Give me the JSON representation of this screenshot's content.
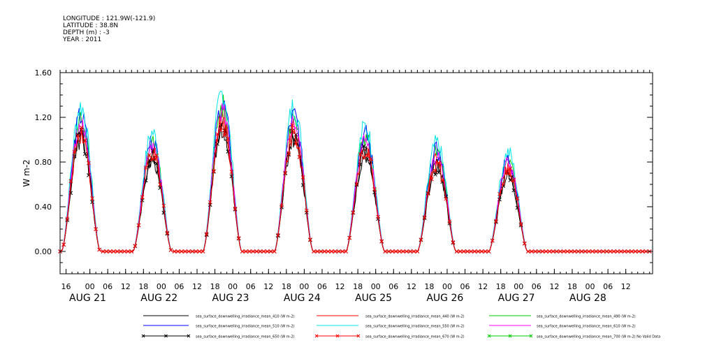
{
  "header": {
    "longitude": "LONGITUDE : 121.9W(-121.9)",
    "latitude": "LATITUDE : 38.8N",
    "depth": "DEPTH (m) : -3",
    "year": "YEAR : 2011"
  },
  "chart_data": {
    "type": "line",
    "ylabel": "W m-2",
    "ylim": [
      -0.2,
      1.6
    ],
    "yticks": [
      "0.00",
      "0.40",
      "0.80",
      "1.20",
      "1.60"
    ],
    "ytick_values": [
      0.0,
      0.4,
      0.8,
      1.2,
      1.6
    ],
    "x_hour_ticks": [
      "16",
      "00",
      "06",
      "12",
      "18",
      "00",
      "06",
      "12",
      "18",
      "00",
      "06",
      "12",
      "18",
      "00",
      "06",
      "12",
      "18",
      "00",
      "06",
      "12",
      "18",
      "00",
      "06",
      "12",
      "18",
      "00",
      "06",
      "12",
      "18",
      "00",
      "06",
      "12"
    ],
    "x_hour_tick_times": [
      -8,
      0,
      6,
      12,
      18,
      24,
      30,
      36,
      42,
      48,
      54,
      60,
      66,
      72,
      78,
      84,
      90,
      96,
      102,
      108,
      114,
      120,
      126,
      132,
      138,
      144,
      150,
      156,
      162,
      168,
      174,
      180
    ],
    "x_day_labels": [
      "AUG 21",
      "AUG 22",
      "AUG 23",
      "AUG 24",
      "AUG 25",
      "AUG 26",
      "AUG 27",
      "AUG 28"
    ],
    "x_day_label_times": [
      -12,
      12,
      36,
      60,
      84,
      108,
      132,
      156
    ],
    "xlim": [
      -10,
      189
    ],
    "daily_peaks": [
      {
        "center_hour": -3,
        "peak": 1.1
      },
      {
        "center_hour": 21,
        "peak": 0.9
      },
      {
        "center_hour": 44.5,
        "peak": 1.2
      },
      {
        "center_hour": 68.5,
        "peak": 1.1
      },
      {
        "center_hour": 92.5,
        "peak": 0.95
      },
      {
        "center_hour": 116.5,
        "peak": 0.82
      },
      {
        "center_hour": 140.5,
        "peak": 0.75
      },
      {
        "center_hour": 164.5,
        "peak": 0.0
      }
    ],
    "series": [
      {
        "name": "sea_surface_downwelling_irradiance_mean_410 (W m-2)",
        "color": "#000000",
        "marker": "line",
        "scale": 0.92
      },
      {
        "name": "sea_surface_downwelling_irradiance_mean_440 (W m-2)",
        "color": "#ff0000",
        "marker": "line",
        "scale": 1.0
      },
      {
        "name": "sea_surface_downwelling_irradiance_mean_490 (W m-2)",
        "color": "#00cc00",
        "marker": "line",
        "scale": 1.08
      },
      {
        "name": "sea_surface_downwelling_irradiance_mean_510 (W m-2)",
        "color": "#0000ff",
        "marker": "line",
        "scale": 1.1
      },
      {
        "name": "sea_surface_downwelling_irradiance_mean_550 (W m-2)",
        "color": "#00e5e5",
        "marker": "line",
        "scale": 1.18
      },
      {
        "name": "sea_surface_downwelling_irradiance_mean_610 (W m-2)",
        "color": "#ff00ff",
        "marker": "line",
        "scale": 1.05
      },
      {
        "name": "sea_surface_downwelling_irradiance_mean_650 (W m-2)",
        "color": "#000000",
        "marker": "x",
        "scale": 0.93
      },
      {
        "name": "sea_surface_downwelling_irradiance_mean_670 (W m-2)",
        "color": "#ff0000",
        "marker": "x",
        "scale": 0.97
      },
      {
        "name": "sea_surface_downwelling_irradiance_mean_700 (W m-2) No Valid Data",
        "color": "#00cc00",
        "marker": "x",
        "scale": 0.0
      }
    ]
  }
}
